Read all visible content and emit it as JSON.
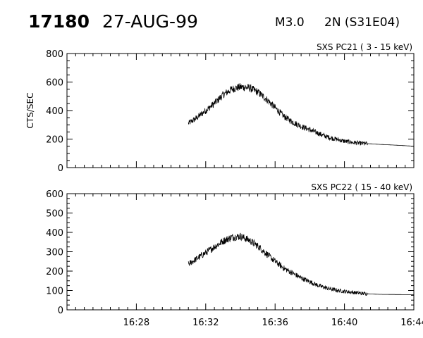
{
  "header": {
    "event_id": "17180",
    "date": "27-AUG-99",
    "flare_class": "M3.0",
    "flare_region": "2N (S31E04)"
  },
  "chart_data": [
    {
      "type": "line",
      "title": "SXS PC21  (  3 - 15 keV)",
      "ylabel": "CTS/SEC",
      "xlabel": "",
      "xlim": [
        "16:24",
        "16:44"
      ],
      "ylim": [
        0,
        800
      ],
      "yticks": [
        0,
        200,
        400,
        600,
        800
      ],
      "xticks": [
        "16:28",
        "16:32",
        "16:36",
        "16:40",
        "16:44"
      ],
      "grid": false,
      "series": [
        {
          "x": [
            "16:31:00",
            "16:31:30",
            "16:32:00",
            "16:32:30",
            "16:33:00",
            "16:33:30",
            "16:34:00",
            "16:34:30",
            "16:35:00",
            "16:35:30",
            "16:36:00",
            "16:36:30",
            "16:37:00",
            "16:37:30",
            "16:38:00",
            "16:38:30",
            "16:39:00",
            "16:39:30",
            "16:40:00",
            "16:40:30",
            "16:41:00",
            "16:41:30",
            "16:42:00",
            "16:43:00",
            "16:44:00"
          ],
          "y": [
            310,
            350,
            400,
            450,
            510,
            550,
            565,
            560,
            530,
            480,
            420,
            360,
            320,
            290,
            265,
            240,
            215,
            200,
            185,
            175,
            170,
            167,
            163,
            157,
            150
          ]
        }
      ]
    },
    {
      "type": "line",
      "title": "SXS PC22  ( 15 - 40 keV)",
      "ylabel": "",
      "xlabel": "",
      "xlim": [
        "16:24",
        "16:44"
      ],
      "ylim": [
        0,
        600
      ],
      "yticks": [
        0,
        100,
        200,
        300,
        400,
        500,
        600
      ],
      "xticks": [
        "16:28",
        "16:32",
        "16:36",
        "16:40",
        "16:44"
      ],
      "grid": false,
      "series": [
        {
          "x": [
            "16:31:00",
            "16:31:30",
            "16:32:00",
            "16:32:30",
            "16:33:00",
            "16:33:30",
            "16:34:00",
            "16:34:30",
            "16:35:00",
            "16:35:30",
            "16:36:00",
            "16:36:30",
            "16:37:00",
            "16:37:30",
            "16:38:00",
            "16:38:30",
            "16:39:00",
            "16:39:30",
            "16:40:00",
            "16:40:30",
            "16:41:00",
            "16:41:30",
            "16:42:00",
            "16:43:00",
            "16:44:00"
          ],
          "y": [
            235,
            265,
            295,
            325,
            355,
            375,
            380,
            360,
            330,
            290,
            250,
            215,
            190,
            165,
            145,
            125,
            112,
            102,
            95,
            90,
            85,
            82,
            80,
            79,
            78
          ]
        }
      ]
    }
  ]
}
